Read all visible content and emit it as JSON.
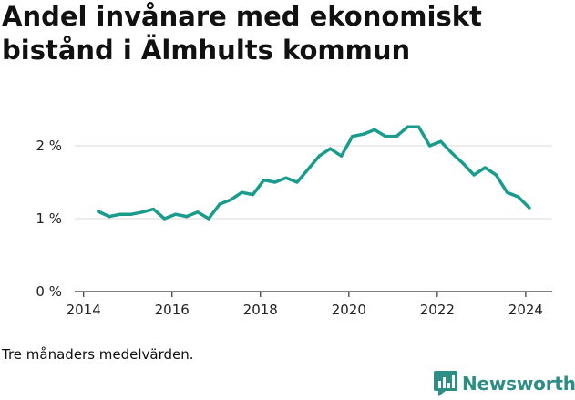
{
  "title": "Andel invånare med ekonomiskt bistånd i Älmhults kommun",
  "footnote": "Tre månaders medelvärden.",
  "brand": {
    "name": "Newsworthy",
    "icon": "newsworthy-logo-icon",
    "color": "#2c8e84"
  },
  "chart_data": {
    "type": "line",
    "title": "Andel invånare med ekonomiskt bistånd i Älmhults kommun",
    "xlabel": "",
    "ylabel": "",
    "xlim": [
      2013.8,
      2024.6
    ],
    "ylim": [
      0,
      2.5
    ],
    "x_ticks": [
      2014,
      2016,
      2018,
      2020,
      2022,
      2024
    ],
    "x_tick_labels": [
      "2014",
      "2016",
      "2018",
      "2020",
      "2022",
      "2024"
    ],
    "y_ticks": [
      0,
      1,
      2
    ],
    "y_tick_labels": [
      "0 %",
      "1 %",
      "2 %"
    ],
    "grid": {
      "horizontal": true,
      "vertical": false
    },
    "line_color": "#1a9c8c",
    "series": [
      {
        "x": [
          2014.33,
          2014.58,
          2014.83,
          2015.08,
          2015.33,
          2015.58,
          2015.83,
          2016.08,
          2016.33,
          2016.58,
          2016.83,
          2017.08,
          2017.33,
          2017.58,
          2017.83,
          2018.08,
          2018.33,
          2018.58,
          2018.83,
          2019.08,
          2019.33,
          2019.58,
          2019.83,
          2020.08,
          2020.33,
          2020.58,
          2020.83,
          2021.08,
          2021.33,
          2021.58,
          2021.83,
          2022.08,
          2022.33,
          2022.58,
          2022.83,
          2023.08,
          2023.33,
          2023.58,
          2023.83,
          2024.08
        ],
        "values": [
          1.1,
          1.03,
          1.06,
          1.06,
          1.09,
          1.13,
          1.0,
          1.06,
          1.03,
          1.09,
          1.0,
          1.2,
          1.26,
          1.36,
          1.33,
          1.53,
          1.5,
          1.56,
          1.5,
          1.68,
          1.86,
          1.96,
          1.86,
          2.13,
          2.16,
          2.22,
          2.13,
          2.13,
          2.26,
          2.26,
          2.0,
          2.06,
          1.9,
          1.76,
          1.6,
          1.7,
          1.6,
          1.36,
          1.3,
          1.15
        ]
      }
    ]
  }
}
